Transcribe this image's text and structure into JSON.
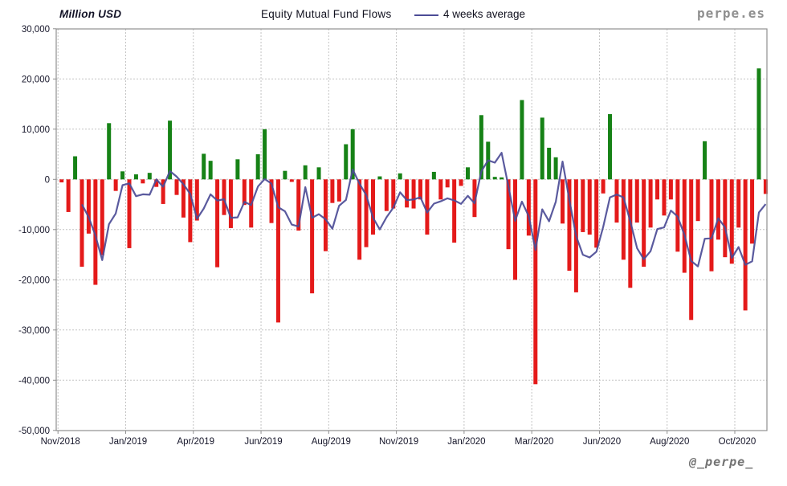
{
  "header": {
    "unit": "Million USD",
    "title": "Equity Mutual Fund Flows",
    "legend_label": "4 weeks average",
    "brand": "perpe.es"
  },
  "footer": {
    "handle": "@_perpe_"
  },
  "colors": {
    "positive_bar": "#168216",
    "negative_bar": "#e41a1a",
    "average_line": "#4c4c96",
    "grid": "#c3c3c3",
    "plot_border": "#8f8f8f",
    "text": "#141428"
  },
  "chart_data": {
    "type": "bar",
    "title": "Equity Mutual Fund Flows",
    "ylabel": "Million USD",
    "ylim": [
      -50000,
      30000
    ],
    "grid": "dotted",
    "legend_position": "top",
    "y_tick_labels": [
      "30,000",
      "20,000",
      "10,000",
      "0",
      "-10,000",
      "-20,000",
      "-30,000",
      "-40,000",
      "-50,000"
    ],
    "y_tick_values": [
      30000,
      20000,
      10000,
      0,
      -10000,
      -20000,
      -30000,
      -40000,
      -50000
    ],
    "x_tick_labels": [
      "Nov/2018",
      "Jan/2019",
      "Apr/2019",
      "Jun/2019",
      "Aug/2019",
      "Nov/2019",
      "Jan/2020",
      "Mar/2020",
      "Jun/2020",
      "Aug/2020",
      "Oct/2020"
    ],
    "x_tick_interval_weeks": 10,
    "frequency": "weekly",
    "series": [
      {
        "name": "Weekly equity fund flows (Million USD)",
        "type": "bar",
        "values": [
          -600,
          -6500,
          4600,
          -17400,
          -10800,
          -21000,
          -15100,
          11200,
          -2300,
          1600,
          -13700,
          1000,
          -800,
          1300,
          -1500,
          -4900,
          11700,
          -3100,
          -7600,
          -12500,
          -8200,
          5100,
          3700,
          -17500,
          -7100,
          -9700,
          4000,
          -5100,
          -9600,
          5000,
          10000,
          -8700,
          -28500,
          1700,
          -500,
          -10200,
          2800,
          -22700,
          2400,
          -14300,
          -4700,
          -4400,
          7000,
          10000,
          -16000,
          -13500,
          -11000,
          600,
          -6300,
          -5800,
          1200,
          -5600,
          -5800,
          -4000,
          -11000,
          1500,
          -4000,
          -1600,
          -12600,
          -1300,
          2400,
          -7500,
          12800,
          7500,
          500,
          400,
          -13900,
          -20000,
          15800,
          -11200,
          -40800,
          12300,
          6300,
          4400,
          -8800,
          -18200,
          -22500,
          -10500,
          -11000,
          -13600,
          -2800,
          13000,
          -8600,
          -16000,
          -21600,
          -8600,
          -17400,
          -9600,
          -4000,
          -7200,
          -4000,
          -14400,
          -18600,
          -28000,
          -8300,
          7600,
          -18300,
          -12000,
          -15500,
          -16800,
          -9600,
          -26100,
          -12800,
          22100,
          -2900
        ]
      },
      {
        "name": "4 weeks average",
        "type": "line",
        "derived_from": "trailing mean of current + previous 3 weekly values, starting week 4"
      }
    ]
  }
}
